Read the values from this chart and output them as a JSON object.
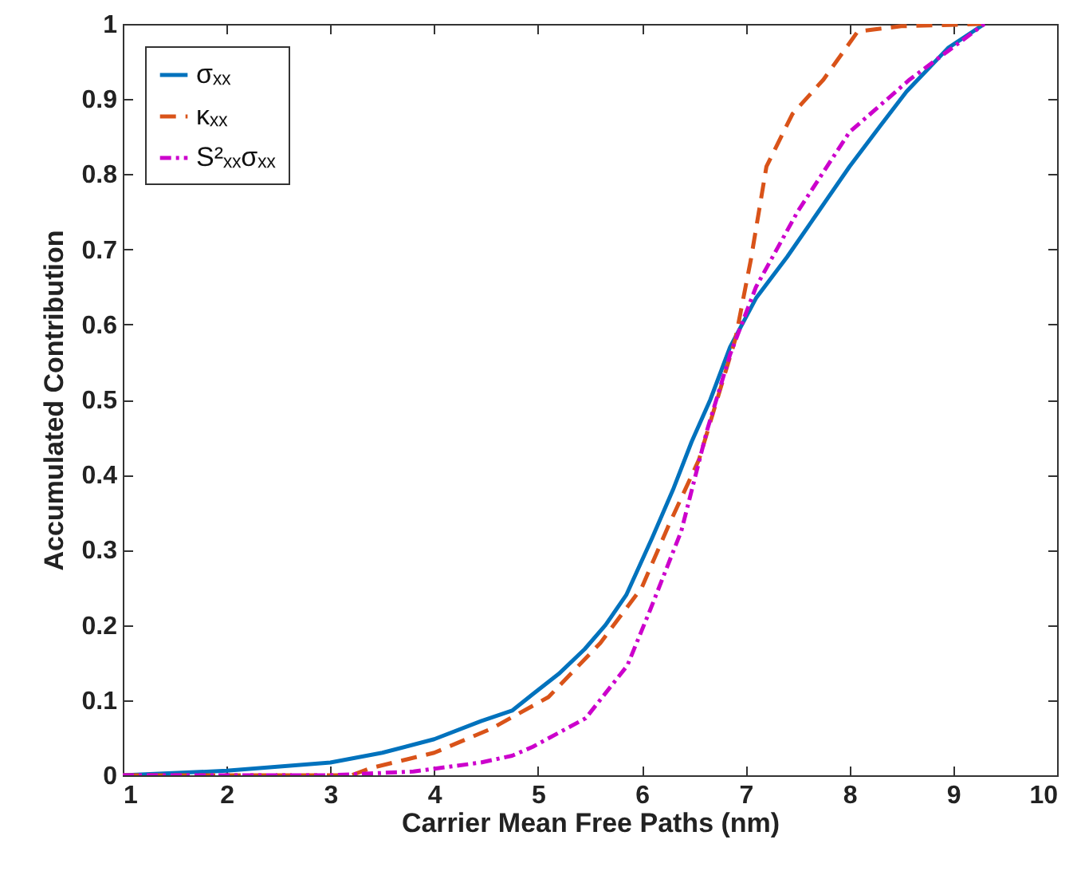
{
  "chart_data": {
    "type": "line",
    "xlabel": "Carrier Mean Free Paths (nm)",
    "ylabel": "Accumulated Contribution",
    "xlim": [
      1,
      10
    ],
    "ylim": [
      0,
      1
    ],
    "xticks": [
      1,
      2,
      3,
      4,
      5,
      6,
      7,
      8,
      9,
      10
    ],
    "yticks": [
      0,
      0.1,
      0.2,
      0.3,
      0.4,
      0.5,
      0.6,
      0.7,
      0.8,
      0.9,
      1
    ],
    "grid": false,
    "legend": "top left",
    "marker": "none",
    "series": [
      {
        "name": "σₓₓ",
        "color": "#0072bd",
        "line_style": "solid",
        "x": [
          1,
          2,
          3,
          3.5,
          4,
          4.45,
          4.75,
          4.95,
          5.2,
          5.45,
          5.65,
          5.85,
          6.1,
          6.3,
          6.48,
          6.66,
          6.85,
          7.1,
          7.4,
          7.7,
          8.0,
          8.3,
          8.55,
          8.95,
          9.3
        ],
        "values": [
          0,
          0.006,
          0.017,
          0.03,
          0.048,
          0.072,
          0.086,
          0.108,
          0.135,
          0.168,
          0.2,
          0.24,
          0.316,
          0.38,
          0.444,
          0.5,
          0.57,
          0.635,
          0.69,
          0.75,
          0.81,
          0.865,
          0.91,
          0.968,
          1
        ]
      },
      {
        "name": "κₓₓ",
        "color": "#d95319",
        "line_style": "dashed",
        "x": [
          1,
          3.2,
          3.4,
          4.0,
          4.55,
          5.1,
          5.6,
          6.0,
          6.25,
          6.55,
          6.9,
          7.05,
          7.2,
          7.45,
          7.75,
          8.08,
          8.5,
          9.3
        ],
        "values": [
          0,
          0,
          0.01,
          0.03,
          0.062,
          0.104,
          0.176,
          0.25,
          0.33,
          0.42,
          0.58,
          0.686,
          0.81,
          0.88,
          0.926,
          0.99,
          0.997,
          1
        ]
      },
      {
        "name": "S²ₓₓσₓₓ",
        "color": "#cc00cc",
        "line_style": "dotted",
        "x": [
          1,
          3.0,
          3.8,
          4.45,
          4.75,
          4.95,
          5.46,
          5.86,
          6.08,
          6.38,
          6.63,
          6.85,
          7.1,
          7.5,
          8.0,
          8.58,
          8.95,
          9.3
        ],
        "values": [
          0,
          0,
          0.005,
          0.017,
          0.026,
          0.038,
          0.076,
          0.146,
          0.22,
          0.325,
          0.46,
          0.56,
          0.65,
          0.75,
          0.856,
          0.926,
          0.964,
          1
        ]
      }
    ]
  }
}
